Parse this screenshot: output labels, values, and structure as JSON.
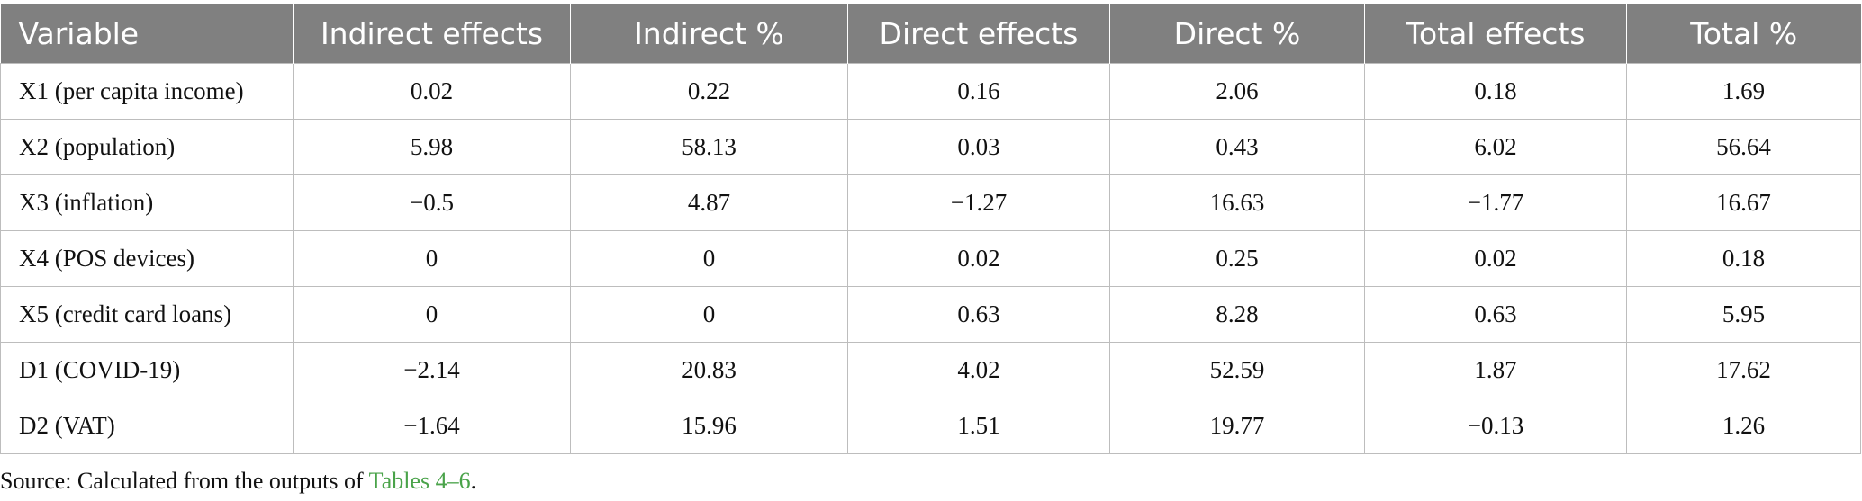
{
  "table": {
    "headers": [
      "Variable",
      "Indirect effects",
      "Indirect %",
      "Direct effects",
      "Direct %",
      "Total effects",
      "Total %"
    ],
    "rows": [
      [
        "X1 (per capita income)",
        "0.02",
        "0.22",
        "0.16",
        "2.06",
        "0.18",
        "1.69"
      ],
      [
        "X2 (population)",
        "5.98",
        "58.13",
        "0.03",
        "0.43",
        "6.02",
        "56.64"
      ],
      [
        "X3 (inflation)",
        "−0.5",
        "4.87",
        "−1.27",
        "16.63",
        "−1.77",
        "16.67"
      ],
      [
        "X4 (POS devices)",
        "0",
        "0",
        "0.02",
        "0.25",
        "0.02",
        "0.18"
      ],
      [
        "X5 (credit card loans)",
        "0",
        "0",
        "0.63",
        "8.28",
        "0.63",
        "5.95"
      ],
      [
        "D1 (COVID-19)",
        "−2.14",
        "20.83",
        "4.02",
        "52.59",
        "1.87",
        "17.62"
      ],
      [
        "D2 (VAT)",
        "−1.64",
        "15.96",
        "1.51",
        "19.77",
        "−0.13",
        "1.26"
      ]
    ]
  },
  "source": {
    "prefix": "Source: Calculated from the outputs of ",
    "link": "Tables 4–6",
    "suffix": "."
  },
  "colors": {
    "header_bg": "#808080",
    "header_text": "#ffffff",
    "link": "#4aa34a",
    "border": "#bdbdbd"
  }
}
